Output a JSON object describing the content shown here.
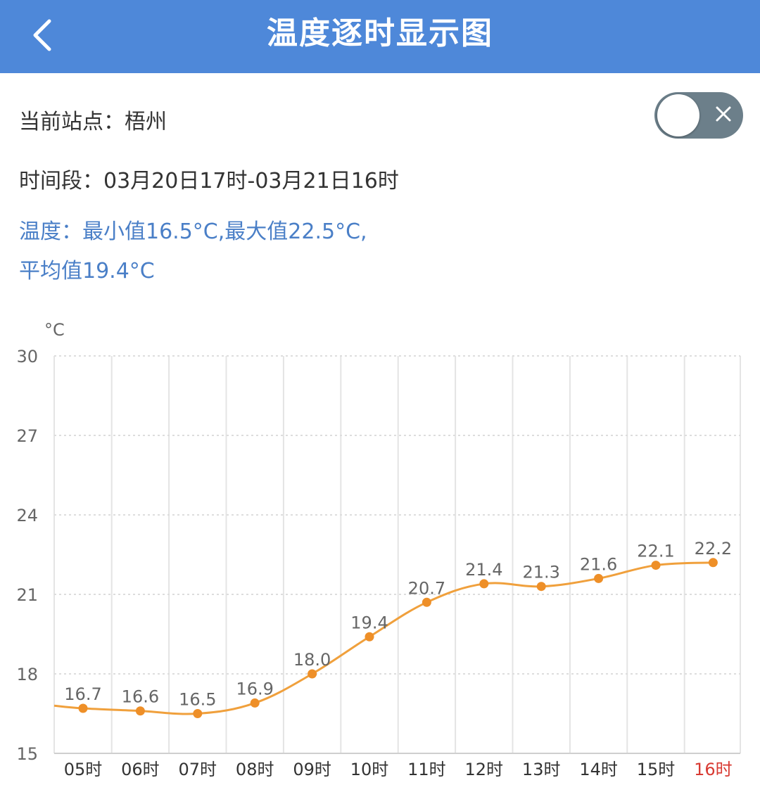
{
  "header": {
    "title": "温度逐时显示图",
    "back_icon": "chevron-left-icon"
  },
  "station": {
    "label": "当前站点：",
    "value": "梧州"
  },
  "period": {
    "label": "时间段：",
    "value": "03月20日17时-03月21日16时"
  },
  "summary": {
    "line1": "温度：最小值16.5°C,最大值22.5°C,",
    "line2": "平均值19.4°C"
  },
  "toggle": {
    "state": "off",
    "icon": "close-icon"
  },
  "colors": {
    "header": "#4e88d9",
    "summary_text": "#4a7fc7",
    "line": "#f0a03c",
    "point": "#ee8f28",
    "highlight_label": "#d83a32"
  },
  "chart_data": {
    "type": "line",
    "unit": "°C",
    "categories": [
      "05时",
      "06时",
      "07时",
      "08时",
      "09时",
      "10时",
      "11时",
      "12时",
      "13时",
      "14时",
      "15时",
      "16时"
    ],
    "values": [
      16.7,
      16.6,
      16.5,
      16.9,
      18.0,
      19.4,
      20.7,
      21.4,
      21.3,
      21.6,
      22.1,
      22.2
    ],
    "value_labels": [
      "16.7",
      "16.6",
      "16.5",
      "16.9",
      "18.0",
      "19.4",
      "20.7",
      "21.4",
      "21.3",
      "21.6",
      "22.1",
      "22.2"
    ],
    "yticks": [
      15,
      18,
      21,
      24,
      27,
      30
    ],
    "ylim": [
      15,
      30
    ],
    "highlighted_category": "16时",
    "grid": true
  }
}
